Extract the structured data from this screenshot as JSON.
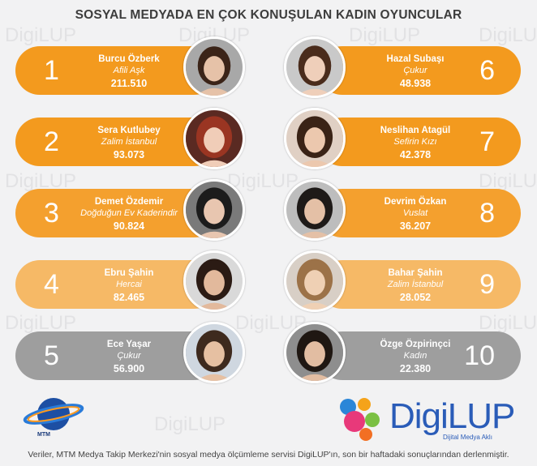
{
  "title": "SOSYAL MEDYADA EN ÇOK KONUŞULAN KADIN OYUNCULAR",
  "watermark": "DigiLUP",
  "colors": {
    "rank1": "#f39a1e",
    "rank2": "#f39a1e",
    "rank3": "#f4a02e",
    "rank4": "#f6b966",
    "rank5": "#9e9e9e",
    "rank6": "#f39a1e",
    "rank7": "#f39a1e",
    "rank8": "#f4a02e",
    "rank9": "#f6b966",
    "rank10": "#9e9e9e"
  },
  "actresses": [
    {
      "rank": "1",
      "name": "Burcu Özberk",
      "show": "Afili Aşk",
      "score": "211.510"
    },
    {
      "rank": "2",
      "name": "Sera Kutlubey",
      "show": "Zalim İstanbul",
      "score": "93.073"
    },
    {
      "rank": "3",
      "name": "Demet Özdemir",
      "show": "Doğduğun Ev Kaderindir",
      "score": "90.824"
    },
    {
      "rank": "4",
      "name": "Ebru Şahin",
      "show": "Hercai",
      "score": "82.465"
    },
    {
      "rank": "5",
      "name": "Ece Yaşar",
      "show": "Çukur",
      "score": "56.900"
    },
    {
      "rank": "6",
      "name": "Hazal Subaşı",
      "show": "Çukur",
      "score": "48.938"
    },
    {
      "rank": "7",
      "name": "Neslihan Atagül",
      "show": "Sefirin Kızı",
      "score": "42.378"
    },
    {
      "rank": "8",
      "name": "Devrim Özkan",
      "show": "Vuslat",
      "score": "36.207"
    },
    {
      "rank": "9",
      "name": "Bahar Şahin",
      "show": "Zalim İstanbul",
      "score": "28.052"
    },
    {
      "rank": "10",
      "name": "Özge Özpirinçci",
      "show": "Kadın",
      "score": "22.380"
    }
  ],
  "logos": {
    "mtm_label": "MTM",
    "digilup_name": "DigiLUP",
    "digilup_tagline": "Dijital Medya Aklı"
  },
  "footer": "Veriler, MTM Medya Takip Merkezi'nin sosyal medya ölçümleme servisi DigiLUP'ın, son bir haftadaki sonuçlarından derlenmiştir."
}
